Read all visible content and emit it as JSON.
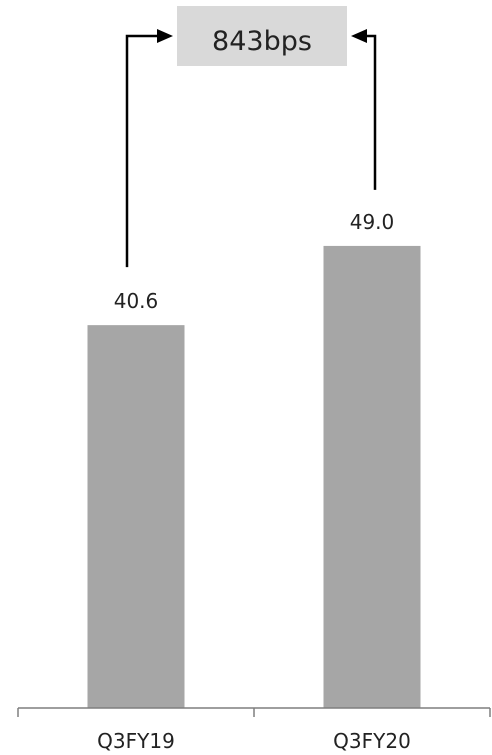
{
  "chart_data": {
    "type": "bar",
    "categories": [
      "Q3FY19",
      "Q3FY20"
    ],
    "values": [
      40.6,
      49.0
    ],
    "value_labels": [
      "40.6",
      "49.0"
    ],
    "title": "",
    "xlabel": "",
    "ylabel": "",
    "ylim": [
      0,
      84
    ],
    "grid": false,
    "legend": "none",
    "annotation": {
      "text": "843bps",
      "from": "Q3FY19",
      "to": "Q3FY20"
    },
    "colors": {
      "bar": "#a6a6a6",
      "axis": "#7f7f7f",
      "annotation_box": "#d9d9d9",
      "arrow": "#000000"
    }
  }
}
